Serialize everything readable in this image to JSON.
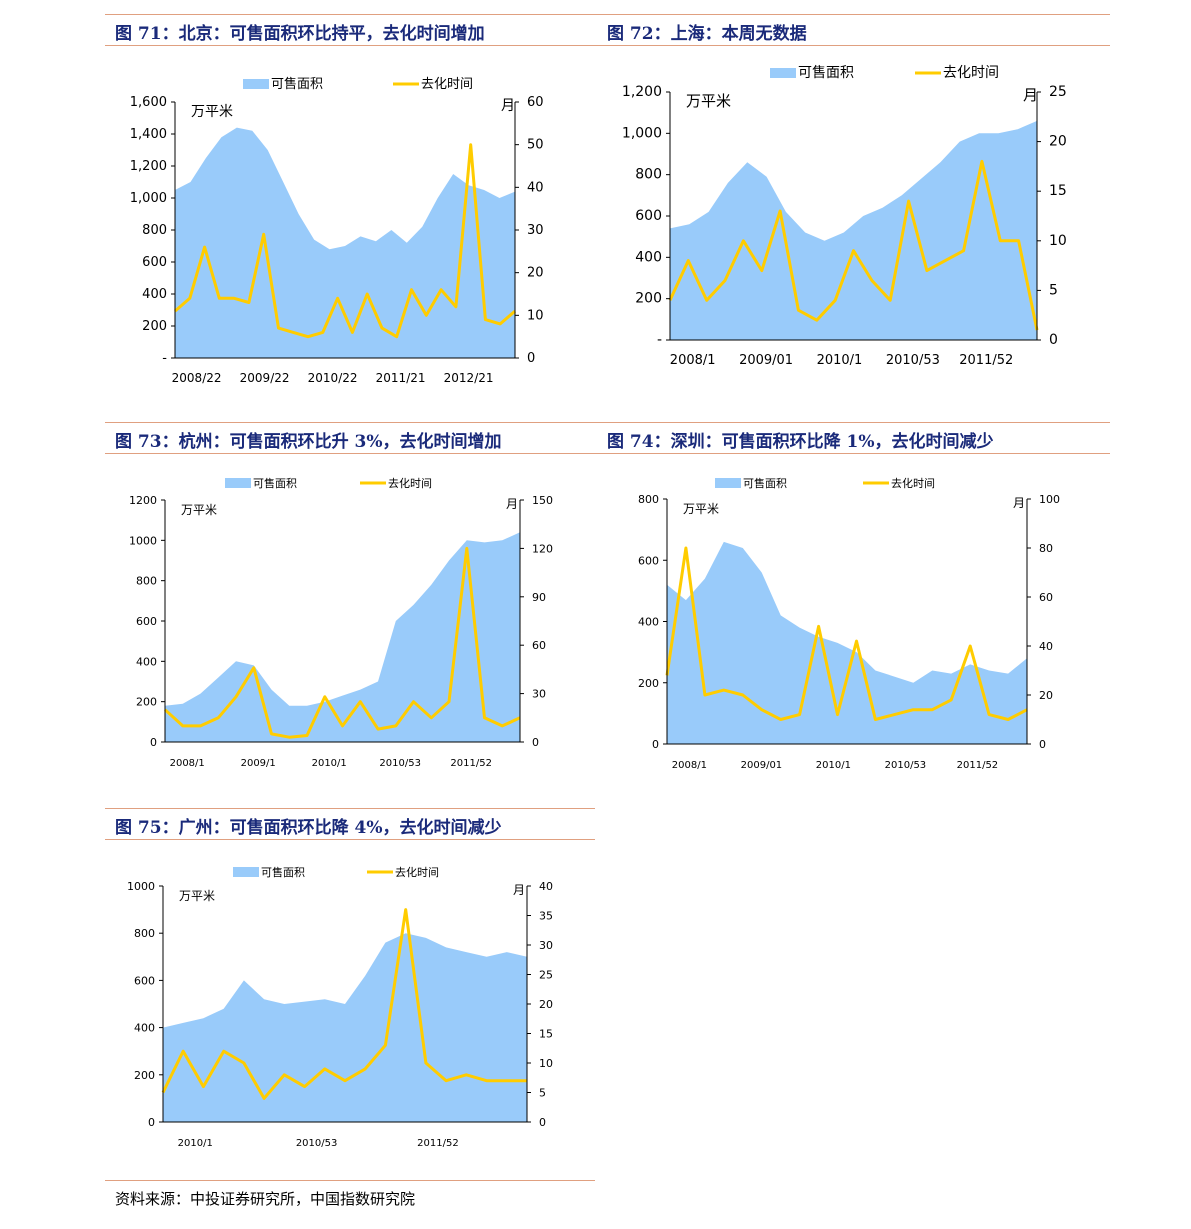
{
  "headers": [
    {
      "title": "图 71：北京：可售面积环比持平，去化时间增加"
    },
    {
      "title": "图 72：上海：本周无数据"
    },
    {
      "title": "图 73：杭州：可售面积环比升 3%，去化时间增加"
    },
    {
      "title": "图 74：深圳：可售面积环比降 1%，去化时间减少"
    },
    {
      "title": "图 75：广州：可售面积环比降 4%，去化时间减少"
    }
  ],
  "source": "资料来源：中投证券研究所，中国指数研究院",
  "colors": {
    "area": "#99cbfa",
    "line": "#ffcc00",
    "title": "#1a2a7a",
    "rule": "#e0a080"
  },
  "chart_data": [
    {
      "type": "area+line",
      "legend": [
        "可售面积",
        "去化时间"
      ],
      "left_unit": "万平米",
      "right_unit": "月",
      "ylim_left": [
        0,
        1600
      ],
      "ylim_right": [
        0,
        60
      ],
      "left_ticks": [
        "-",
        "200",
        "400",
        "600",
        "800",
        "1,000",
        "1,200",
        "1,400",
        "1,600"
      ],
      "right_ticks": [
        "0",
        "10",
        "20",
        "30",
        "40",
        "50",
        "60"
      ],
      "x_labels": [
        "2008/22",
        "2009/22",
        "2010/22",
        "2011/21",
        "2012/21"
      ],
      "series": [
        {
          "name": "可售面积",
          "axis": "left",
          "values": [
            1050,
            1100,
            1250,
            1380,
            1440,
            1420,
            1300,
            1100,
            900,
            740,
            680,
            700,
            760,
            730,
            800,
            720,
            820,
            1000,
            1150,
            1080,
            1050,
            1000,
            1040
          ]
        },
        {
          "name": "去化时间",
          "axis": "right",
          "values": [
            11,
            14,
            26,
            14,
            14,
            13,
            29,
            7,
            6,
            5,
            6,
            14,
            6,
            15,
            7,
            5,
            16,
            10,
            16,
            12,
            50,
            9,
            8,
            11
          ]
        }
      ]
    },
    {
      "type": "area+line",
      "legend": [
        "可售面积",
        "去化时间"
      ],
      "left_unit": "万平米",
      "right_unit": "月",
      "ylim_left": [
        0,
        1200
      ],
      "ylim_right": [
        0,
        25
      ],
      "left_ticks": [
        "-",
        "200",
        "400",
        "600",
        "800",
        "1,000",
        "1,200"
      ],
      "right_ticks": [
        "0",
        "5",
        "10",
        "15",
        "20",
        "25"
      ],
      "x_labels": [
        "2008/1",
        "2009/01",
        "2010/1",
        "2010/53",
        "2011/52"
      ],
      "series": [
        {
          "name": "可售面积",
          "axis": "left",
          "values": [
            540,
            560,
            620,
            760,
            860,
            790,
            620,
            520,
            480,
            520,
            600,
            640,
            700,
            780,
            860,
            960,
            1000,
            1000,
            1020,
            1060
          ]
        },
        {
          "name": "去化时间",
          "axis": "right",
          "values": [
            4,
            8,
            4,
            6,
            10,
            7,
            13,
            3,
            2,
            4,
            9,
            6,
            4,
            14,
            7,
            8,
            9,
            18,
            10,
            10,
            1
          ]
        }
      ]
    },
    {
      "type": "area+line",
      "legend": [
        "可售面积",
        "去化时间"
      ],
      "left_unit": "万平米",
      "right_unit": "月",
      "ylim_left": [
        0,
        1200
      ],
      "ylim_right": [
        0,
        150
      ],
      "left_ticks": [
        "0",
        "200",
        "400",
        "600",
        "800",
        "1000",
        "1200"
      ],
      "right_ticks": [
        "0",
        "30",
        "60",
        "90",
        "120",
        "150"
      ],
      "x_labels": [
        "2008/1",
        "2009/1",
        "2010/1",
        "2010/53",
        "2011/52"
      ],
      "series": [
        {
          "name": "可售面积",
          "axis": "left",
          "values": [
            180,
            190,
            240,
            320,
            400,
            380,
            260,
            180,
            180,
            200,
            230,
            260,
            300,
            600,
            680,
            780,
            900,
            1000,
            990,
            1000,
            1040
          ]
        },
        {
          "name": "去化时间",
          "axis": "right",
          "values": [
            20,
            10,
            10,
            15,
            28,
            46,
            5,
            3,
            4,
            28,
            10,
            25,
            8,
            10,
            25,
            15,
            25,
            120,
            15,
            10,
            15
          ]
        }
      ]
    },
    {
      "type": "area+line",
      "legend": [
        "可售面积",
        "去化时间"
      ],
      "left_unit": "万平米",
      "right_unit": "月",
      "ylim_left": [
        0,
        800
      ],
      "ylim_right": [
        0,
        100
      ],
      "left_ticks": [
        "0",
        "200",
        "400",
        "600",
        "800"
      ],
      "right_ticks": [
        "0",
        "20",
        "40",
        "60",
        "80",
        "100"
      ],
      "x_labels": [
        "2008/1",
        "2009/01",
        "2010/1",
        "2010/53",
        "2011/52"
      ],
      "series": [
        {
          "name": "可售面积",
          "axis": "left",
          "values": [
            520,
            470,
            540,
            660,
            640,
            560,
            420,
            380,
            350,
            330,
            300,
            240,
            220,
            200,
            240,
            230,
            260,
            240,
            230,
            280
          ]
        },
        {
          "name": "去化时间",
          "axis": "right",
          "values": [
            28,
            80,
            20,
            22,
            20,
            14,
            10,
            12,
            48,
            12,
            42,
            10,
            12,
            14,
            14,
            18,
            40,
            12,
            10,
            14
          ]
        }
      ]
    },
    {
      "type": "area+line",
      "legend": [
        "可售面积",
        "去化时间"
      ],
      "left_unit": "万平米",
      "right_unit": "月",
      "ylim_left": [
        0,
        1000
      ],
      "ylim_right": [
        0,
        40
      ],
      "left_ticks": [
        "0",
        "200",
        "400",
        "600",
        "800",
        "1000"
      ],
      "right_ticks": [
        "0",
        "5",
        "10",
        "15",
        "20",
        "25",
        "30",
        "35",
        "40"
      ],
      "x_labels": [
        "2010/1",
        "2010/53",
        "2011/52"
      ],
      "series": [
        {
          "name": "可售面积",
          "axis": "left",
          "values": [
            400,
            420,
            440,
            480,
            600,
            520,
            500,
            510,
            520,
            500,
            620,
            760,
            800,
            780,
            740,
            720,
            700,
            720,
            700
          ]
        },
        {
          "name": "去化时间",
          "axis": "right",
          "values": [
            5,
            12,
            6,
            12,
            10,
            4,
            8,
            6,
            9,
            7,
            9,
            13,
            36,
            10,
            7,
            8,
            7,
            7,
            7
          ]
        }
      ]
    }
  ]
}
